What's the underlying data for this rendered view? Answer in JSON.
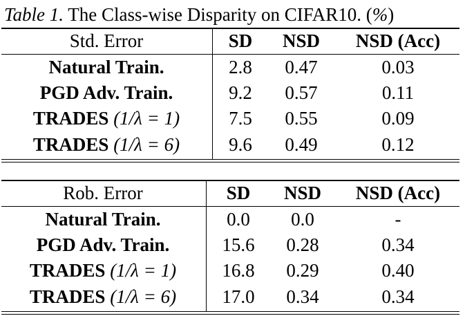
{
  "caption": {
    "label": "Table 1.",
    "text": " The Class-wise Disparity on CIFAR10. (",
    "percent": "%",
    "close": ")"
  },
  "table_std": {
    "header": [
      "Std. Error",
      "SD",
      "NSD",
      "NSD (Acc)"
    ],
    "rows": [
      {
        "method": "Natural Train.",
        "suffix": "",
        "sd": "2.8",
        "nsd": "0.47",
        "nsd_acc": "0.03"
      },
      {
        "method": "PGD Adv. Train.",
        "suffix": "",
        "sd": "9.2",
        "nsd": "0.57",
        "nsd_acc": "0.11"
      },
      {
        "method": "TRADES",
        "suffix": " (1/λ = 1)",
        "sd": "7.5",
        "nsd": "0.55",
        "nsd_acc": "0.09"
      },
      {
        "method": "TRADES",
        "suffix": " (1/λ = 6)",
        "sd": "9.6",
        "nsd": "0.49",
        "nsd_acc": "0.12"
      }
    ]
  },
  "table_rob": {
    "header": [
      "Rob. Error",
      "SD",
      "NSD",
      "NSD (Acc)"
    ],
    "rows": [
      {
        "method": "Natural Train.",
        "suffix": "",
        "sd": "0.0",
        "nsd": "0.0",
        "nsd_acc": "-"
      },
      {
        "method": "PGD Adv. Train.",
        "suffix": "",
        "sd": "15.6",
        "nsd": "0.28",
        "nsd_acc": "0.34"
      },
      {
        "method": "TRADES",
        "suffix": " (1/λ = 1)",
        "sd": "16.8",
        "nsd": "0.29",
        "nsd_acc": "0.40"
      },
      {
        "method": "TRADES",
        "suffix": " (1/λ = 6)",
        "sd": "17.0",
        "nsd": "0.34",
        "nsd_acc": "0.34"
      }
    ]
  }
}
